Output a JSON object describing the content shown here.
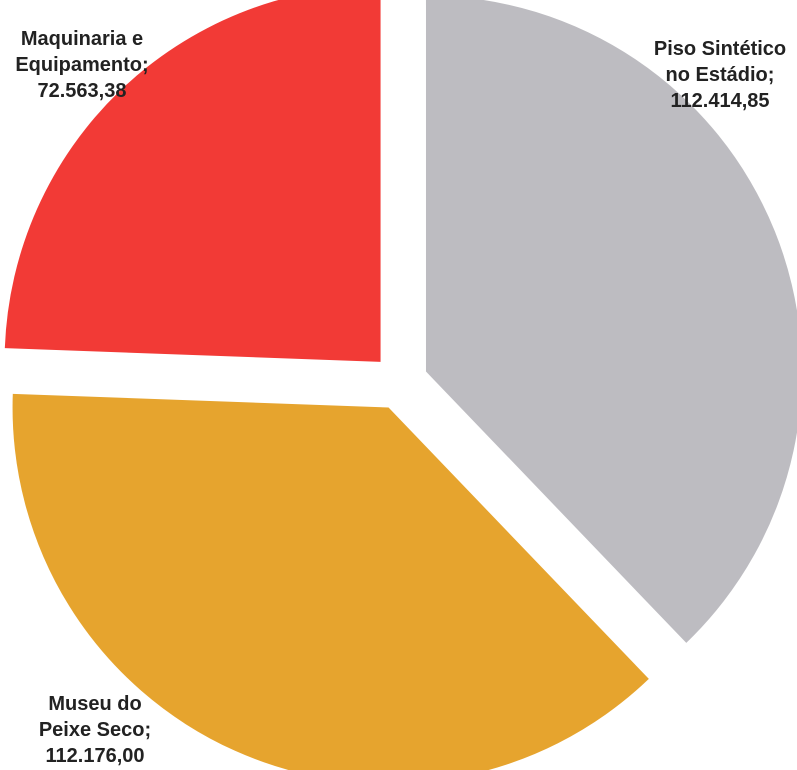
{
  "chart_data": {
    "type": "pie",
    "title": "",
    "series": [
      {
        "values": [
          112414.85,
          112176.0,
          72563.38
        ]
      }
    ],
    "slices": [
      {
        "label": "Piso Sintético no Estádio",
        "value": 112414.85,
        "color": "#bdbcc1",
        "label_lines": [
          "Piso Sintético",
          "no Estádio;",
          "112.414,85"
        ]
      },
      {
        "label": "Museu do Peixe Seco",
        "value": 112176.0,
        "color": "#e6a42e",
        "label_lines": [
          "Museu do",
          "Peixe Seco;",
          "112.176,00"
        ]
      },
      {
        "label": "Maquinaria e Equipamento",
        "value": 72563.38,
        "color": "#f23a36",
        "label_lines": [
          "Maquinaria e",
          "Equipamento;",
          "72.563,38"
        ]
      }
    ],
    "start_angle": "top",
    "direction": "clockwise",
    "exploded": true,
    "legend": "none"
  }
}
